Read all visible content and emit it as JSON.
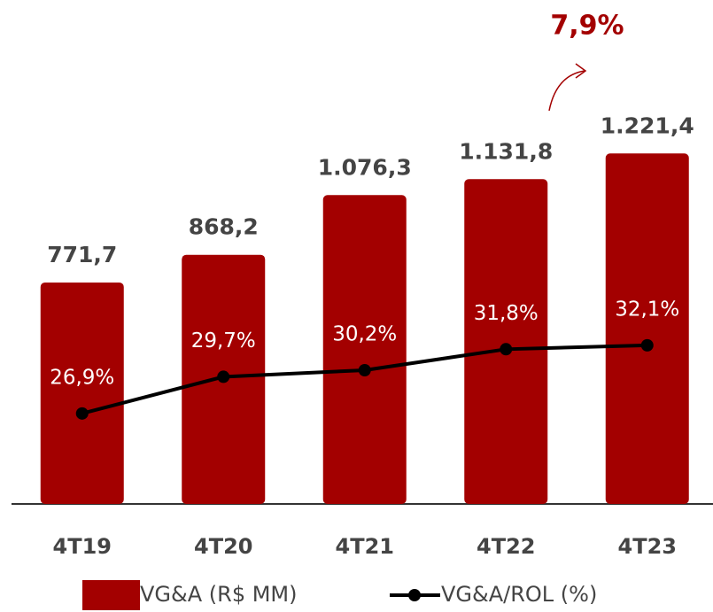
{
  "chart_data": {
    "type": "bar_line",
    "categories": [
      "4T19",
      "4T20",
      "4T21",
      "4T22",
      "4T23"
    ],
    "series": [
      {
        "name": "VG&A (R$ MM)",
        "color": "#a30000",
        "values": [
          771.7,
          868.2,
          1076.3,
          1131.8,
          1221.4
        ],
        "value_labels": [
          "771,7",
          "868,2",
          "1.076,3",
          "1.131,8",
          "1.221,4"
        ]
      },
      {
        "name": "VG&A/ROL (%)",
        "color": "#000000",
        "axis": "y2",
        "values": [
          26.9,
          29.7,
          30.2,
          31.8,
          32.1
        ],
        "value_labels": [
          "26,9%",
          "29,7%",
          "30,2%",
          "31,8%",
          "32,1%"
        ]
      }
    ],
    "annotation": "7,9%",
    "ylim": [
      0,
      1750
    ],
    "y2lim": [
      20,
      58.3
    ]
  }
}
